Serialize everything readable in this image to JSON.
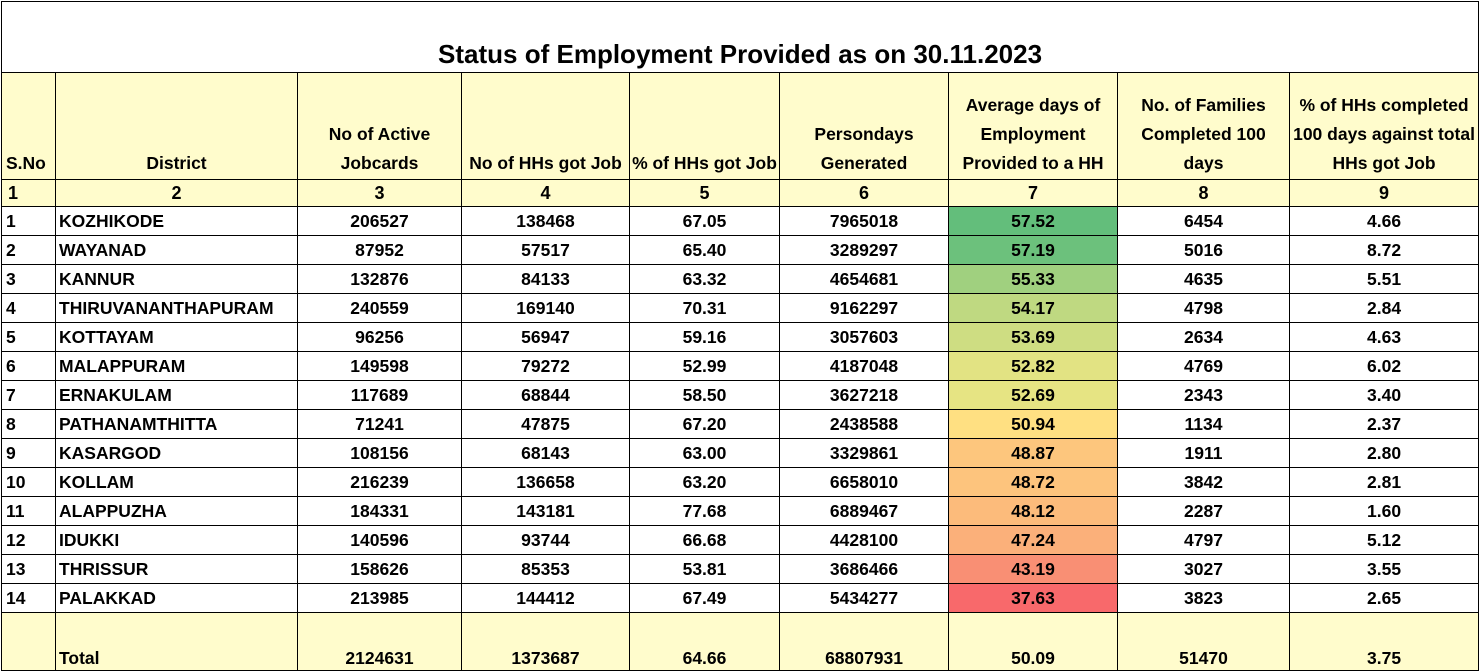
{
  "title": "Status of Employment Provided as on 30.11.2023",
  "headers": [
    "S.No",
    "District",
    "No of Active Jobcards",
    "No of HHs got Job",
    "% of HHs got Job",
    "Persondays Generated",
    "Average days of Employment Provided to a HH",
    "No. of Families Completed 100 days",
    "% of HHs completed 100 days against total HHs got Job"
  ],
  "column_numbers": [
    "1",
    "2",
    "3",
    "4",
    "5",
    "6",
    "7",
    "8",
    "9"
  ],
  "rows": [
    [
      "1",
      "KOZHIKODE",
      "206527",
      "138468",
      "67.05",
      "7965018",
      "57.52",
      "6454",
      "4.66"
    ],
    [
      "2",
      "WAYANAD",
      "87952",
      "57517",
      "65.40",
      "3289297",
      "57.19",
      "5016",
      "8.72"
    ],
    [
      "3",
      "KANNUR",
      "132876",
      "84133",
      "63.32",
      "4654681",
      "55.33",
      "4635",
      "5.51"
    ],
    [
      "4",
      "THIRUVANANTHAPURAM",
      "240559",
      "169140",
      "70.31",
      "9162297",
      "54.17",
      "4798",
      "2.84"
    ],
    [
      "5",
      "KOTTAYAM",
      "96256",
      "56947",
      "59.16",
      "3057603",
      "53.69",
      "2634",
      "4.63"
    ],
    [
      "6",
      "MALAPPURAM",
      "149598",
      "79272",
      "52.99",
      "4187048",
      "52.82",
      "4769",
      "6.02"
    ],
    [
      "7",
      "ERNAKULAM",
      "117689",
      "68844",
      "58.50",
      "3627218",
      "52.69",
      "2343",
      "3.40"
    ],
    [
      "8",
      "PATHANAMTHITTA",
      "71241",
      "47875",
      "67.20",
      "2438588",
      "50.94",
      "1134",
      "2.37"
    ],
    [
      "9",
      "KASARGOD",
      "108156",
      "68143",
      "63.00",
      "3329861",
      "48.87",
      "1911",
      "2.80"
    ],
    [
      "10",
      "KOLLAM",
      "216239",
      "136658",
      "63.20",
      "6658010",
      "48.72",
      "3842",
      "2.81"
    ],
    [
      "11",
      "ALAPPUZHA",
      "184331",
      "143181",
      "77.68",
      "6889467",
      "48.12",
      "2287",
      "1.60"
    ],
    [
      "12",
      "IDUKKI",
      "140596",
      "93744",
      "66.68",
      "4428100",
      "47.24",
      "4797",
      "5.12"
    ],
    [
      "13",
      "THRISSUR",
      "158626",
      "85353",
      "53.81",
      "3686466",
      "43.19",
      "3027",
      "3.55"
    ],
    [
      "14",
      "PALAKKAD",
      "213985",
      "144412",
      "67.49",
      "5434277",
      "37.63",
      "3823",
      "2.65"
    ]
  ],
  "total": [
    "",
    "Total",
    "2124631",
    "1373687",
    "64.66",
    "68807931",
    "50.09",
    "51470",
    "3.75"
  ],
  "heat_colors": [
    "#63be7b",
    "#6cc17c",
    "#a0d07f",
    "#bfd981",
    "#cedd82",
    "#e2e383",
    "#e6e483",
    "#ffe082",
    "#fdc67d",
    "#fdc47d",
    "#fcbb7b",
    "#fbb07a",
    "#f98f74",
    "#f8696b"
  ]
}
